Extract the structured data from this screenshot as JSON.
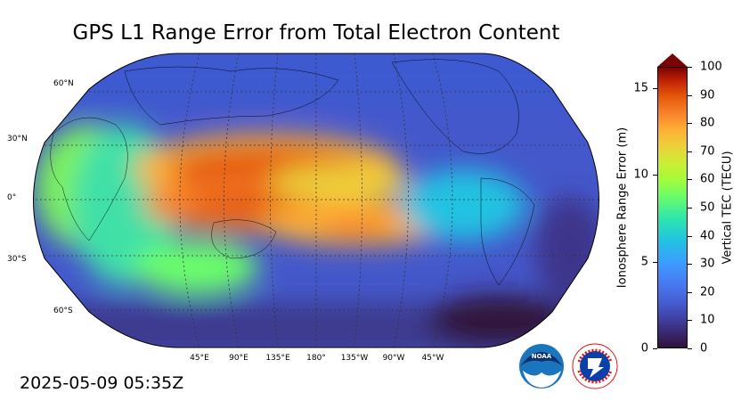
{
  "title": "GPS L1 Range Error from Total Electron Content",
  "timestamp": "2025-05-09 05:35Z",
  "map": {
    "projection": "Robinson, Pacific-centered",
    "lat_labels": [
      "60°N",
      "30°N",
      "0°",
      "30°S",
      "60°S"
    ],
    "lon_labels": [
      "45°E",
      "90°E",
      "135°E",
      "180°",
      "135°W",
      "90°W",
      "45°W"
    ]
  },
  "colorbar": {
    "right_label": "Vertical TEC (TECU)",
    "right_ticks": [
      "0",
      "10",
      "20",
      "30",
      "40",
      "50",
      "60",
      "70",
      "80",
      "90",
      "100"
    ],
    "left_label": "Ionosphere Range Error (m)",
    "left_ticks": [
      "0",
      "5",
      "10",
      "15"
    ],
    "colormap": "turbo",
    "extend": "max",
    "max_color": "#7a0403",
    "min_color": "#30123b"
  },
  "logos": [
    {
      "name": "noaa-logo",
      "text": "NOAA"
    },
    {
      "name": "nws-logo",
      "text": "NATIONAL WEATHER SERVICE"
    }
  ]
}
